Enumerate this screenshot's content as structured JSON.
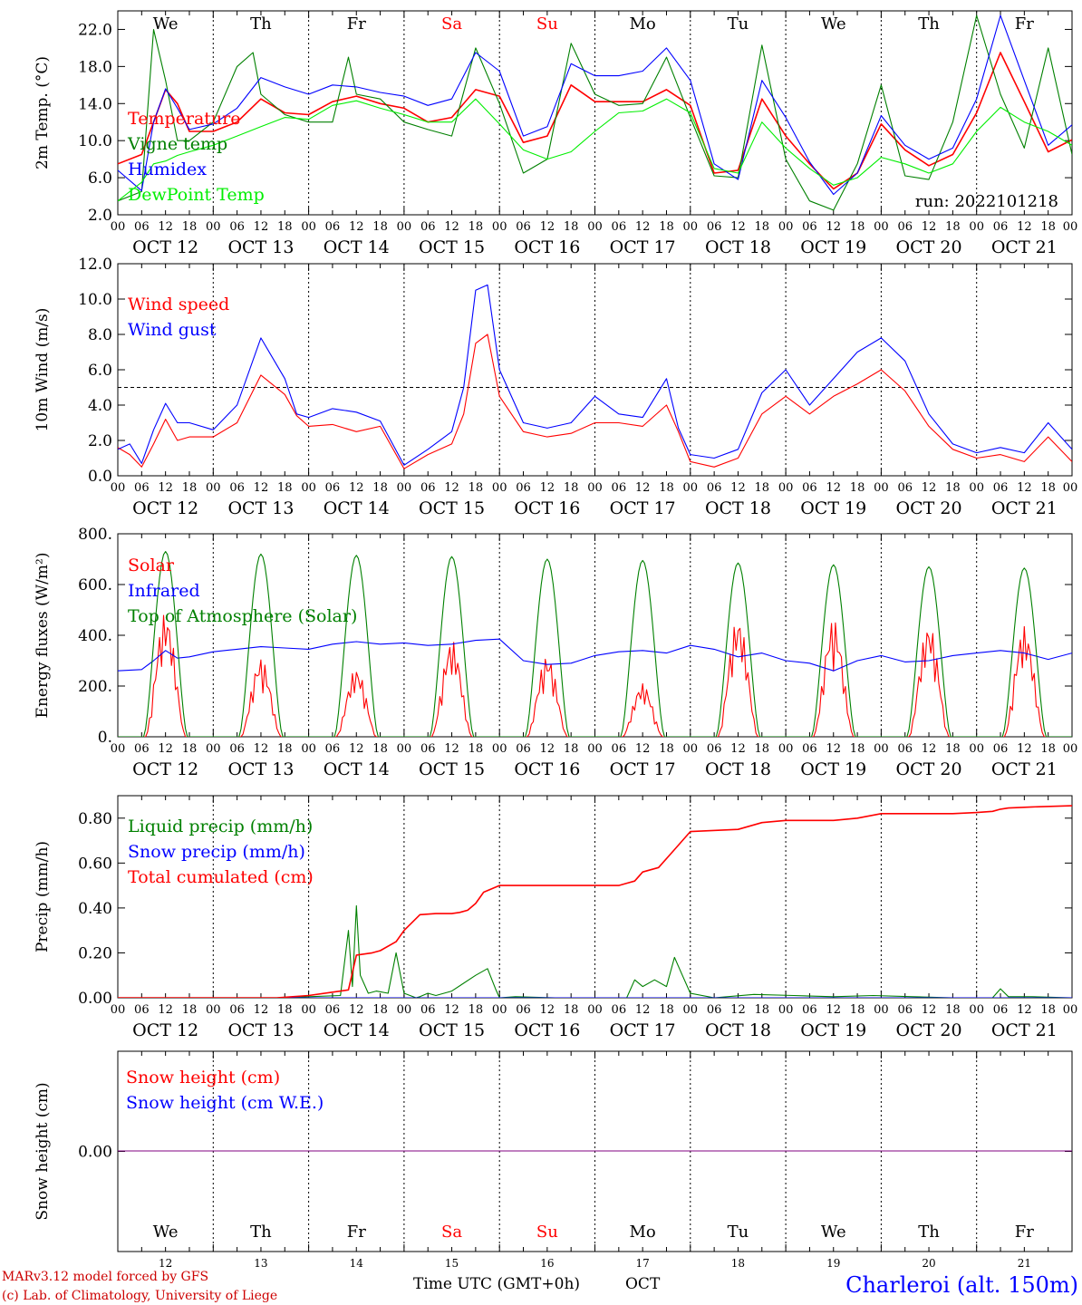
{
  "meta": {
    "run_label": "run: 2022101218",
    "footer_model": "MARv3.12 model forced by GFS",
    "footer_lab": "(c) Lab. of Climatology, University of Liege",
    "footer_axis": "Time UTC (GMT+0h)",
    "footer_month": "OCT",
    "station": "Charleroi (alt. 150m)"
  },
  "days": {
    "weekday_labels": [
      "We",
      "Th",
      "Fr",
      "Sa",
      "Su",
      "Mo",
      "Tu",
      "We",
      "Th",
      "Fr"
    ],
    "weekend_flags": [
      false,
      false,
      false,
      true,
      true,
      false,
      false,
      false,
      false,
      false
    ],
    "day_numbers": [
      "12",
      "13",
      "14",
      "15",
      "16",
      "17",
      "18",
      "19",
      "20",
      "21"
    ],
    "date_labels": [
      "OCT 12",
      "OCT 13",
      "OCT 14",
      "OCT 15",
      "OCT 16",
      "OCT 17",
      "OCT 18",
      "OCT 19",
      "OCT 20",
      "OCT 21"
    ],
    "hour_labels": [
      "00",
      "06",
      "12",
      "18"
    ],
    "end_hour_label": "00"
  },
  "colors": {
    "red": "#ff0000",
    "darkgreen": "#008000",
    "blue": "#0000ff",
    "lightgreen": "#00ee00",
    "weekend": "#ff0000",
    "station": "#0000ff",
    "footer": "#cc0000",
    "purple": "#800080"
  },
  "chart_data": [
    {
      "type": "line",
      "ylabel": "2m Temp. (°C)",
      "ylim": [
        2,
        24
      ],
      "yticks": [
        "2.0",
        "6.0",
        "10.0",
        "14.0",
        "18.0",
        "22.0"
      ],
      "x_unit": "hours since 2022-10-12 00 UTC",
      "x_range": [
        0,
        240
      ],
      "series": [
        {
          "name": "Temperature",
          "color": "red",
          "x": [
            0,
            6,
            9,
            12,
            15,
            18,
            24,
            30,
            36,
            42,
            48,
            54,
            60,
            66,
            72,
            78,
            84,
            90,
            96,
            102,
            108,
            114,
            120,
            126,
            132,
            138,
            144,
            150,
            156,
            162,
            168,
            174,
            180,
            186,
            192,
            198,
            204,
            210,
            216,
            222,
            228,
            234,
            240
          ],
          "y": [
            7.5,
            8.5,
            12,
            15.5,
            14,
            11,
            11,
            12,
            14.5,
            13,
            12.8,
            14.2,
            14.8,
            14,
            13.5,
            12,
            12.5,
            15.5,
            14.8,
            9.8,
            10.5,
            16,
            14.2,
            14.2,
            14.2,
            15.5,
            13.8,
            6.5,
            6.8,
            14.5,
            10.5,
            7.5,
            4.8,
            6.5,
            11.8,
            9,
            7.3,
            8.5,
            13,
            19.5,
            14.2,
            8.8,
            10.1
          ]
        },
        {
          "name": "Vigne temp",
          "color": "darkgreen",
          "x": [
            0,
            6,
            9,
            12,
            15,
            18,
            24,
            30,
            34,
            36,
            42,
            48,
            54,
            58,
            60,
            66,
            72,
            78,
            84,
            90,
            96,
            102,
            108,
            114,
            120,
            126,
            132,
            138,
            144,
            150,
            156,
            162,
            168,
            174,
            180,
            186,
            192,
            198,
            204,
            210,
            216,
            222,
            228,
            234,
            240
          ],
          "y": [
            3.5,
            4.5,
            22,
            16.5,
            10,
            10,
            12,
            18,
            19.5,
            15,
            12.8,
            12,
            12,
            19,
            15,
            14.5,
            12,
            11.2,
            10.5,
            20,
            14,
            6.5,
            8,
            20.5,
            15,
            13.8,
            14,
            19,
            12.5,
            6.2,
            6,
            20.3,
            8,
            3.5,
            2.5,
            7.5,
            16,
            6.2,
            5.8,
            12,
            23.5,
            15,
            9.2,
            20,
            8.5
          ]
        },
        {
          "name": "Humidex",
          "color": "blue",
          "x": [
            0,
            6,
            9,
            12,
            15,
            18,
            24,
            30,
            36,
            42,
            48,
            54,
            60,
            66,
            72,
            78,
            84,
            90,
            96,
            102,
            108,
            114,
            120,
            126,
            132,
            138,
            144,
            150,
            156,
            162,
            168,
            174,
            180,
            186,
            192,
            198,
            204,
            210,
            216,
            222,
            228,
            234,
            240
          ],
          "y": [
            6.8,
            4.6,
            12,
            15.6,
            13.5,
            11.2,
            11.8,
            13.5,
            16.8,
            15.8,
            15,
            16,
            15.8,
            15.2,
            14.8,
            13.8,
            14.5,
            19.5,
            17.5,
            10.5,
            11.5,
            18.3,
            17,
            17,
            17.5,
            20,
            16.5,
            7.5,
            5.8,
            16.5,
            12.5,
            7.7,
            4.2,
            6.5,
            12.7,
            9.5,
            8,
            9.2,
            14.5,
            23.5,
            16.5,
            9.5,
            11.7
          ]
        },
        {
          "name": "DewPoint Temp",
          "color": "lightgreen",
          "x": [
            0,
            6,
            9,
            12,
            15,
            18,
            24,
            30,
            36,
            42,
            48,
            54,
            60,
            66,
            72,
            78,
            84,
            90,
            96,
            102,
            108,
            114,
            120,
            126,
            132,
            138,
            144,
            150,
            156,
            162,
            168,
            174,
            180,
            186,
            192,
            198,
            204,
            210,
            216,
            222,
            228,
            234,
            240
          ],
          "y": [
            3.5,
            5.5,
            7.5,
            7.8,
            8.4,
            8.8,
            9.5,
            10.5,
            11.5,
            12.5,
            12.3,
            13.8,
            14.3,
            13.5,
            12.8,
            12,
            12,
            14.5,
            11.8,
            9,
            8,
            8.8,
            11,
            13,
            13.2,
            14.5,
            13,
            7,
            6.5,
            12,
            9.2,
            7,
            5.2,
            6,
            8.2,
            7.5,
            6.5,
            7.5,
            11,
            13.6,
            12,
            11,
            9.5
          ]
        }
      ]
    },
    {
      "type": "line",
      "ylabel": "10m Wind (m/s)",
      "ylim": [
        0,
        12
      ],
      "yticks": [
        "0.0",
        "2.0",
        "4.0",
        "6.0",
        "8.0",
        "10.0",
        "12.0"
      ],
      "reference_line": 5,
      "x_range": [
        0,
        240
      ],
      "series": [
        {
          "name": "Wind speed",
          "color": "red",
          "x": [
            0,
            3,
            6,
            9,
            12,
            15,
            18,
            24,
            30,
            36,
            42,
            45,
            48,
            54,
            60,
            66,
            72,
            78,
            84,
            87,
            90,
            93,
            96,
            102,
            108,
            114,
            120,
            126,
            132,
            138,
            141,
            144,
            150,
            156,
            162,
            168,
            174,
            180,
            186,
            192,
            198,
            204,
            210,
            216,
            222,
            228,
            234,
            240
          ],
          "y": [
            1.6,
            1.2,
            0.5,
            1.8,
            3.2,
            2,
            2.2,
            2.2,
            3,
            5.7,
            4.6,
            3.4,
            2.8,
            2.9,
            2.5,
            2.8,
            0.4,
            1.2,
            1.8,
            3.5,
            7.5,
            8,
            4.5,
            2.5,
            2.2,
            2.4,
            3,
            3,
            2.8,
            4,
            2.5,
            0.8,
            0.5,
            1,
            3.5,
            4.5,
            3.5,
            4.5,
            5.2,
            6,
            4.8,
            2.8,
            1.5,
            1,
            1.2,
            0.8,
            2.2,
            0.8
          ]
        },
        {
          "name": "Wind gust",
          "color": "blue",
          "x": [
            0,
            3,
            6,
            9,
            12,
            15,
            18,
            24,
            30,
            36,
            42,
            45,
            48,
            54,
            60,
            66,
            72,
            78,
            84,
            87,
            90,
            93,
            96,
            102,
            108,
            114,
            120,
            126,
            132,
            138,
            141,
            144,
            150,
            156,
            162,
            168,
            174,
            180,
            186,
            192,
            198,
            204,
            210,
            216,
            222,
            228,
            234,
            240
          ],
          "y": [
            1.5,
            1.8,
            0.7,
            2.6,
            4.1,
            3,
            3,
            2.6,
            4,
            7.8,
            5.5,
            3.5,
            3.3,
            3.8,
            3.6,
            3.1,
            0.6,
            1.5,
            2.5,
            5,
            10.5,
            10.8,
            6,
            3,
            2.7,
            3,
            4.5,
            3.5,
            3.3,
            5.5,
            2.7,
            1.2,
            1,
            1.5,
            4.7,
            6,
            4,
            5.5,
            7,
            7.8,
            6.5,
            3.5,
            1.8,
            1.3,
            1.6,
            1.3,
            3,
            1.5
          ]
        }
      ]
    },
    {
      "type": "line",
      "ylabel": "Energy fluxes (W/m²)",
      "ylim": [
        0,
        800
      ],
      "yticks": [
        "0.",
        "200.",
        "400.",
        "600.",
        "800."
      ],
      "x_range": [
        0,
        240
      ],
      "series": [
        {
          "name": "Solar",
          "color": "red",
          "daily_peaks": [
            490,
            310,
            270,
            380,
            320,
            210,
            470,
            465,
            445,
            435
          ]
        },
        {
          "name": "Infrared",
          "color": "blue",
          "x": [
            0,
            6,
            9,
            12,
            15,
            18,
            24,
            30,
            36,
            42,
            48,
            54,
            60,
            66,
            72,
            78,
            84,
            90,
            96,
            102,
            108,
            114,
            120,
            126,
            132,
            138,
            144,
            150,
            156,
            162,
            168,
            174,
            180,
            186,
            192,
            198,
            204,
            210,
            216,
            222,
            228,
            234,
            240
          ],
          "y": [
            260,
            265,
            300,
            340,
            310,
            315,
            335,
            345,
            355,
            350,
            345,
            365,
            375,
            365,
            370,
            360,
            365,
            380,
            385,
            300,
            285,
            290,
            320,
            335,
            340,
            330,
            360,
            345,
            315,
            330,
            300,
            290,
            260,
            300,
            320,
            295,
            300,
            320,
            330,
            340,
            330,
            305,
            330
          ]
        },
        {
          "name": "Top of Atmosphere (Solar)",
          "color": "darkgreen",
          "daily_peaks": [
            730,
            720,
            715,
            710,
            700,
            695,
            685,
            678,
            670,
            665
          ]
        }
      ]
    },
    {
      "type": "line",
      "ylabel": "Precip (mm/h)",
      "ylim": [
        0,
        0.9
      ],
      "yticks": [
        "0.00",
        "0.20",
        "0.40",
        "0.60",
        "0.80"
      ],
      "x_range": [
        0,
        240
      ],
      "series": [
        {
          "name": "Liquid precip (mm/h)",
          "color": "darkgreen",
          "x": [
            0,
            40,
            48,
            56,
            58,
            59,
            60,
            61,
            63,
            65,
            68,
            70,
            72,
            75,
            76,
            78,
            80,
            84,
            90,
            93,
            95,
            96,
            100,
            110,
            120,
            128,
            130,
            132,
            135,
            138,
            140,
            142,
            144,
            150,
            160,
            170,
            180,
            190,
            200,
            210,
            216,
            220,
            222,
            224,
            230,
            240
          ],
          "y": [
            0,
            0,
            0.005,
            0.01,
            0.3,
            0.05,
            0.41,
            0.1,
            0.02,
            0.03,
            0.02,
            0.2,
            0.02,
            0,
            0.005,
            0.02,
            0.01,
            0.03,
            0.1,
            0.13,
            0.04,
            0,
            0.005,
            0,
            0,
            0,
            0.08,
            0.05,
            0.08,
            0.05,
            0.18,
            0.1,
            0.02,
            0,
            0.015,
            0.01,
            0.005,
            0.01,
            0.005,
            0,
            0,
            0,
            0.04,
            0.005,
            0.005,
            0
          ]
        },
        {
          "name": "Snow precip (mm/h)",
          "color": "blue",
          "x": [
            0,
            240
          ],
          "y": [
            0,
            0
          ]
        },
        {
          "name": "Total cumulated (cm)",
          "color": "red",
          "x": [
            0,
            40,
            48,
            54,
            58,
            60,
            64,
            66,
            70,
            72,
            76,
            80,
            84,
            86,
            88,
            90,
            92,
            96,
            108,
            120,
            126,
            128,
            130,
            132,
            136,
            140,
            144,
            156,
            162,
            168,
            180,
            186,
            192,
            198,
            204,
            210,
            216,
            220,
            222,
            224,
            230,
            240
          ],
          "y": [
            0,
            0,
            0.01,
            0.025,
            0.035,
            0.19,
            0.2,
            0.21,
            0.25,
            0.3,
            0.37,
            0.375,
            0.375,
            0.38,
            0.39,
            0.42,
            0.47,
            0.5,
            0.5,
            0.5,
            0.5,
            0.51,
            0.52,
            0.56,
            0.58,
            0.66,
            0.74,
            0.75,
            0.78,
            0.79,
            0.79,
            0.8,
            0.82,
            0.82,
            0.82,
            0.82,
            0.825,
            0.83,
            0.84,
            0.845,
            0.85,
            0.855
          ]
        }
      ]
    },
    {
      "type": "line",
      "ylabel": "Snow height (cm)",
      "yticks": [
        "0.00"
      ],
      "x_range": [
        0,
        240
      ],
      "series": [
        {
          "name": "Snow height (cm)",
          "color": "red",
          "x": [
            0,
            240
          ],
          "y": [
            0,
            0
          ]
        },
        {
          "name": "Snow height (cm W.E.)",
          "color": "blue",
          "x": [
            0,
            240
          ],
          "y": [
            0,
            0
          ]
        }
      ]
    }
  ]
}
